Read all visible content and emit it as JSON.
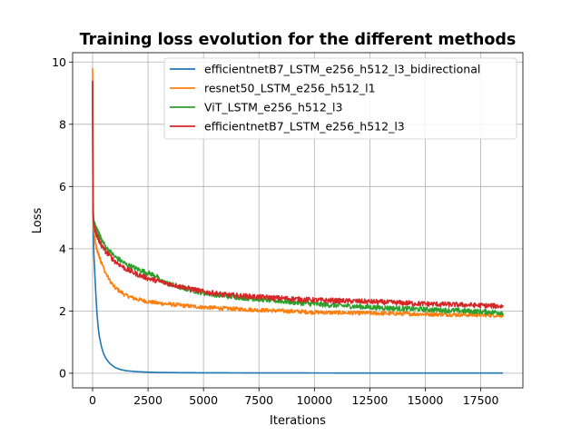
{
  "chart_data": {
    "type": "line",
    "title": "Training loss evolution for the different methods",
    "xlabel": "Iterations",
    "ylabel": "Loss",
    "xlim": [
      -900,
      19400
    ],
    "ylim": [
      -0.47,
      10.3
    ],
    "xticks": [
      0,
      2500,
      5000,
      7500,
      10000,
      12500,
      15000,
      17500
    ],
    "yticks": [
      0,
      2,
      4,
      6,
      8,
      10
    ],
    "grid": true,
    "legend_position": "top-right",
    "series": [
      {
        "name": "efficientnetB7_LSTM_e256_h512_l3_bidirectional",
        "color": "#1f77b4",
        "noise": 0.0,
        "x": [
          0,
          10,
          30,
          60,
          100,
          150,
          200,
          250,
          300,
          400,
          500,
          600,
          700,
          800,
          1000,
          1200,
          1500,
          2000,
          2500,
          3000,
          4000,
          5000,
          7500,
          10000,
          12500,
          15000,
          17500,
          18500
        ],
        "y": [
          9.4,
          6.5,
          4.6,
          3.8,
          3.2,
          2.5,
          1.9,
          1.5,
          1.2,
          0.85,
          0.62,
          0.48,
          0.38,
          0.3,
          0.19,
          0.13,
          0.08,
          0.05,
          0.035,
          0.025,
          0.018,
          0.014,
          0.01,
          0.008,
          0.007,
          0.006,
          0.005,
          0.005
        ]
      },
      {
        "name": "resnet50_LSTM_e256_h512_l1",
        "color": "#ff7f0e",
        "noise": 0.04,
        "x": [
          0,
          20,
          50,
          100,
          200,
          400,
          600,
          800,
          1000,
          1500,
          2000,
          2500,
          3000,
          4000,
          5000,
          6000,
          7500,
          9000,
          10000,
          12500,
          15000,
          17500,
          18500
        ],
        "y": [
          9.8,
          6.2,
          4.6,
          4.3,
          3.95,
          3.55,
          3.2,
          2.95,
          2.75,
          2.5,
          2.38,
          2.3,
          2.25,
          2.18,
          2.12,
          2.08,
          2.03,
          1.99,
          1.96,
          1.93,
          1.9,
          1.87,
          1.86
        ]
      },
      {
        "name": "ViT_LSTM_e256_h512_l3",
        "color": "#2ca02c",
        "noise": 0.05,
        "x": [
          0,
          20,
          50,
          100,
          200,
          300,
          400,
          600,
          800,
          1000,
          1500,
          2000,
          2500,
          2900,
          3000,
          4000,
          5000,
          6000,
          7500,
          10000,
          12500,
          15000,
          17500,
          18500
        ],
        "y": [
          9.3,
          5.2,
          4.9,
          4.75,
          4.6,
          4.45,
          4.3,
          4.05,
          3.9,
          3.75,
          3.5,
          3.35,
          3.22,
          3.12,
          2.98,
          2.75,
          2.58,
          2.48,
          2.38,
          2.22,
          2.12,
          2.05,
          1.98,
          1.95
        ]
      },
      {
        "name": "efficientnetB7_LSTM_e256_h512_l3",
        "color": "#d62728",
        "noise": 0.05,
        "x": [
          0,
          20,
          50,
          100,
          200,
          300,
          400,
          600,
          800,
          1000,
          1500,
          2000,
          2500,
          3000,
          4000,
          5000,
          6000,
          7500,
          10000,
          12500,
          15000,
          17500,
          18500
        ],
        "y": [
          9.4,
          5.1,
          4.85,
          4.6,
          4.4,
          4.25,
          4.1,
          3.9,
          3.75,
          3.6,
          3.35,
          3.18,
          3.05,
          2.95,
          2.78,
          2.62,
          2.52,
          2.45,
          2.35,
          2.3,
          2.23,
          2.18,
          2.15
        ]
      }
    ]
  }
}
